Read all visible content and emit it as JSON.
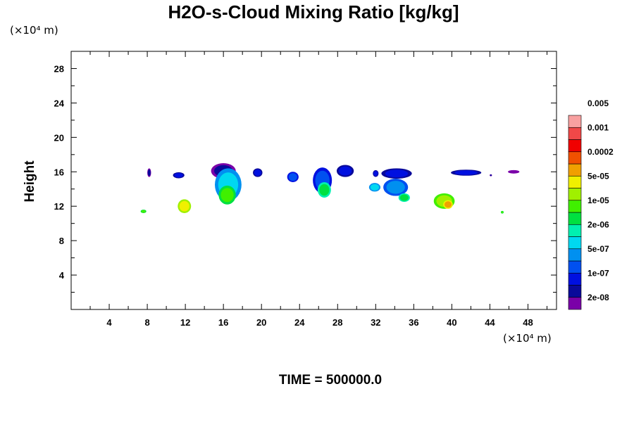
{
  "chart_data": {
    "type": "heatmap",
    "title": "H2O-s-Cloud Mixing Ratio [kg/kg]",
    "ylabel": "Height",
    "y_unit_label": "(×10⁴ m)",
    "x_unit_label": "(×10⁴ m)",
    "footer": "TIME = 500000.0",
    "xlim": [
      0,
      51
    ],
    "ylim": [
      0,
      30
    ],
    "x_ticks": [
      4,
      8,
      12,
      16,
      20,
      24,
      28,
      32,
      36,
      40,
      44,
      48
    ],
    "y_ticks": [
      4,
      8,
      12,
      16,
      20,
      24,
      28
    ],
    "colorbar": {
      "colors": [
        "#7a00a8",
        "#0a0a9a",
        "#0010e0",
        "#0050f0",
        "#0090f0",
        "#00d8f0",
        "#00f0b0",
        "#00e040",
        "#40f000",
        "#a0f000",
        "#f0f000",
        "#f0a000",
        "#f05000",
        "#f00000",
        "#f04848",
        "#f8a0a0"
      ],
      "labels": [
        "2e-08",
        "1e-07",
        "5e-07",
        "2e-06",
        "1e-05",
        "5e-05",
        "0.0002",
        "0.001",
        "0.005"
      ]
    },
    "blobs": [
      {
        "x": 8.2,
        "y": 15.9,
        "rx": 0.2,
        "ry": 0.5,
        "level": 1
      },
      {
        "x": 7.6,
        "y": 11.4,
        "rx": 0.3,
        "ry": 0.2,
        "level": 8
      },
      {
        "x": 11.3,
        "y": 15.6,
        "rx": 0.6,
        "ry": 0.35,
        "level": 2
      },
      {
        "x": 11.9,
        "y": 12.0,
        "rx": 0.7,
        "ry": 0.8,
        "level": 10
      },
      {
        "x": 16.0,
        "y": 16.1,
        "rx": 1.3,
        "ry": 0.9,
        "level": 1
      },
      {
        "x": 16.5,
        "y": 14.5,
        "rx": 1.4,
        "ry": 1.9,
        "level": 5
      },
      {
        "x": 16.4,
        "y": 13.3,
        "rx": 0.9,
        "ry": 1.1,
        "level": 8
      },
      {
        "x": 19.6,
        "y": 15.9,
        "rx": 0.5,
        "ry": 0.5,
        "level": 2
      },
      {
        "x": 23.3,
        "y": 15.4,
        "rx": 0.6,
        "ry": 0.6,
        "level": 3
      },
      {
        "x": 26.4,
        "y": 15.0,
        "rx": 1.0,
        "ry": 1.5,
        "level": 3
      },
      {
        "x": 26.6,
        "y": 13.9,
        "rx": 0.7,
        "ry": 0.9,
        "level": 7
      },
      {
        "x": 28.8,
        "y": 16.1,
        "rx": 0.9,
        "ry": 0.7,
        "level": 2
      },
      {
        "x": 32.0,
        "y": 15.8,
        "rx": 0.3,
        "ry": 0.4,
        "level": 2
      },
      {
        "x": 31.9,
        "y": 14.2,
        "rx": 0.6,
        "ry": 0.5,
        "level": 5
      },
      {
        "x": 34.2,
        "y": 15.8,
        "rx": 1.6,
        "ry": 0.6,
        "level": 2
      },
      {
        "x": 34.1,
        "y": 14.2,
        "rx": 1.3,
        "ry": 1.0,
        "level": 4
      },
      {
        "x": 35.0,
        "y": 13.0,
        "rx": 0.6,
        "ry": 0.5,
        "level": 7
      },
      {
        "x": 39.2,
        "y": 12.6,
        "rx": 1.1,
        "ry": 0.9,
        "level": 9
      },
      {
        "x": 39.6,
        "y": 12.2,
        "rx": 0.5,
        "ry": 0.5,
        "level": 11
      },
      {
        "x": 41.5,
        "y": 15.9,
        "rx": 1.6,
        "ry": 0.35,
        "level": 2
      },
      {
        "x": 44.1,
        "y": 15.6,
        "rx": 0.12,
        "ry": 0.12,
        "level": 1
      },
      {
        "x": 45.3,
        "y": 11.3,
        "rx": 0.15,
        "ry": 0.15,
        "level": 8
      },
      {
        "x": 46.5,
        "y": 16.0,
        "rx": 0.6,
        "ry": 0.2,
        "level": 0
      }
    ]
  }
}
